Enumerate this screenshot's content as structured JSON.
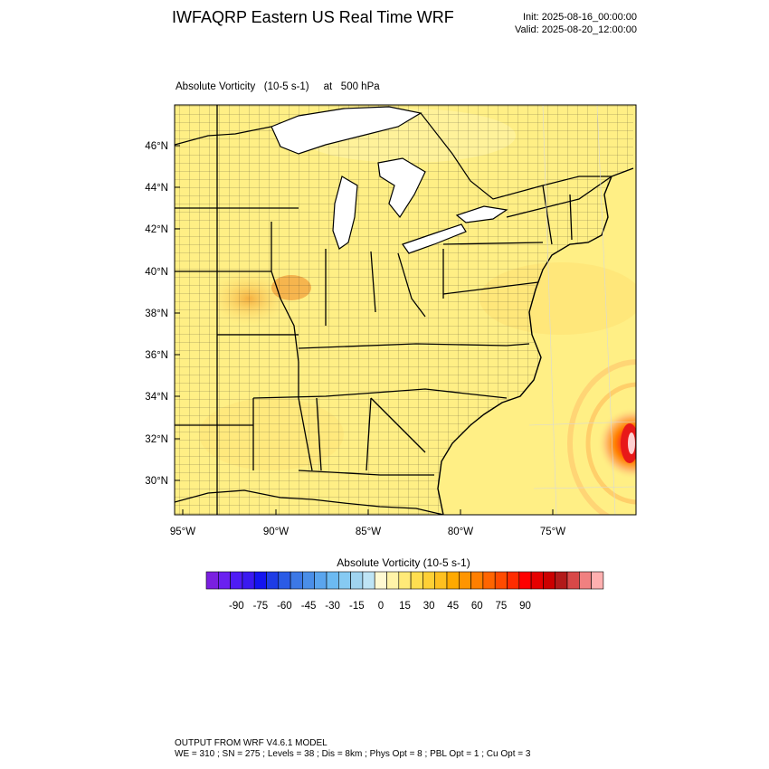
{
  "header": {
    "title": "IWFAQRP Eastern US Real Time WRF",
    "init": "Init: 2025-08-16_00:00:00",
    "valid": "Valid: 2025-08-20_12:00:00"
  },
  "field": {
    "label": "Absolute Vorticity   (10-5 s-1)     at   500 hPa"
  },
  "map": {
    "lat_labels": [
      "46°N",
      "44°N",
      "42°N",
      "40°N",
      "38°N",
      "36°N",
      "34°N",
      "32°N",
      "30°N"
    ],
    "lon_labels": [
      "95°W",
      "90°W",
      "85°W",
      "80°W",
      "75°W"
    ],
    "background_color": "#FFEF85",
    "dominant_field_range": "5 to 15",
    "features": [
      {
        "name": "elevated vorticity over Missouri/Illinois",
        "value_range": "15 to 30"
      },
      {
        "name": "tropical cyclone vortex off the Carolinas coast",
        "value_range": "60 to 100"
      }
    ]
  },
  "colorbar": {
    "title": "Absolute Vorticity  (10-5 s-1)",
    "tick_labels": [
      "-90",
      "-75",
      "-60",
      "-45",
      "-30",
      "-15",
      "0",
      "15",
      "30",
      "45",
      "60",
      "75",
      "90"
    ],
    "colors": [
      "#7A1FE0",
      "#6A20F0",
      "#4F1BF5",
      "#3A19F0",
      "#1414F0",
      "#1E3CE6",
      "#2A5BE6",
      "#3C78E6",
      "#4A8EE8",
      "#5AA5EE",
      "#6CBAF2",
      "#86CAF2",
      "#A0D4F0",
      "#BEE4F5",
      "#FFF9D2",
      "#FFF3A8",
      "#FFEA78",
      "#FFDE50",
      "#FFD035",
      "#FFC020",
      "#FFA900",
      "#FF9500",
      "#FF7F00",
      "#FF6500",
      "#FF4B00",
      "#FF2C00",
      "#FF0000",
      "#E60000",
      "#CC0000",
      "#B21A1A",
      "#D84848",
      "#F08080",
      "#FFB0B0"
    ]
  },
  "footer": {
    "line1": "OUTPUT FROM WRF V4.6.1 MODEL",
    "line2": "WE = 310 ; SN = 275 ; Levels = 38 ; Dis = 8km ; Phys Opt = 8 ; PBL Opt = 1 ; Cu Opt = 3"
  }
}
